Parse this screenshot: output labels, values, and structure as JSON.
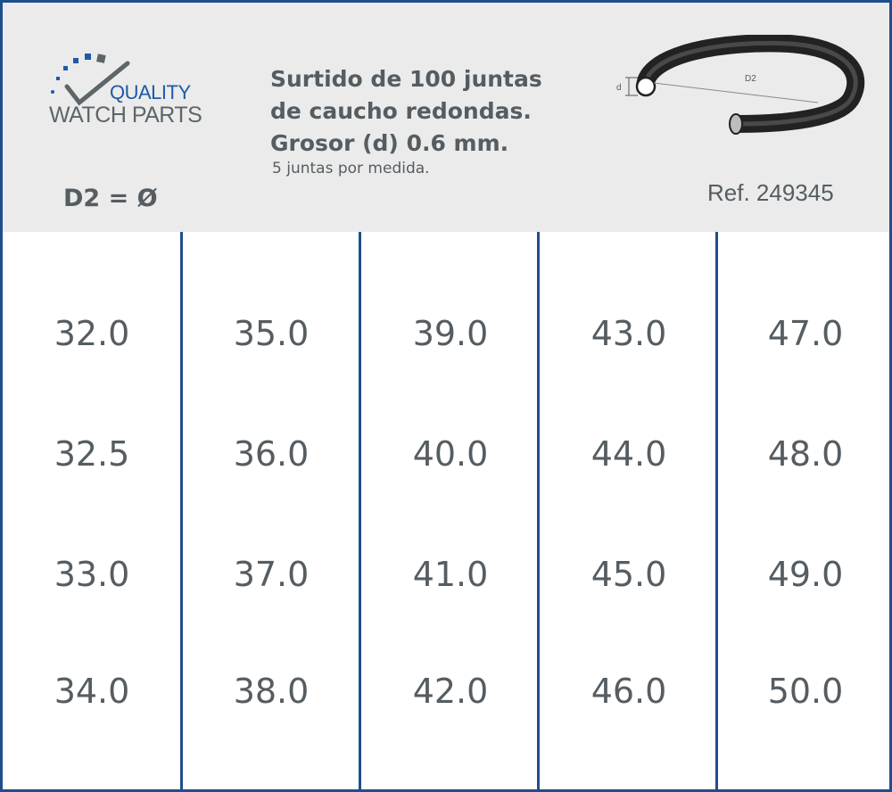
{
  "header": {
    "brand": {
      "line1": "QUALITY",
      "line2": "WATCH PARTS",
      "accent_color": "#1f5aa6",
      "text_color": "#5d6569"
    },
    "title_lines": [
      "Surtido de 100 juntas",
      "de caucho redondas.",
      "Grosor (d) 0.6 mm."
    ],
    "subtitle": "5 juntas por medida.",
    "d2_label": "D2 = Ø",
    "reference": "Ref. 249345",
    "diagram": {
      "label_d": "d",
      "label_d2": "D2",
      "icon": "o-ring-diagram"
    }
  },
  "table": {
    "columns": [
      [
        "32.0",
        "32.5",
        "33.0",
        "34.0"
      ],
      [
        "35.0",
        "36.0",
        "37.0",
        "38.0"
      ],
      [
        "39.0",
        "40.0",
        "41.0",
        "42.0"
      ],
      [
        "43.0",
        "44.0",
        "45.0",
        "46.0"
      ],
      [
        "47.0",
        "48.0",
        "49.0",
        "50.0"
      ]
    ]
  },
  "colors": {
    "border": "#1f4e8c",
    "header_bg": "#ebebeb",
    "text": "#555d62"
  }
}
